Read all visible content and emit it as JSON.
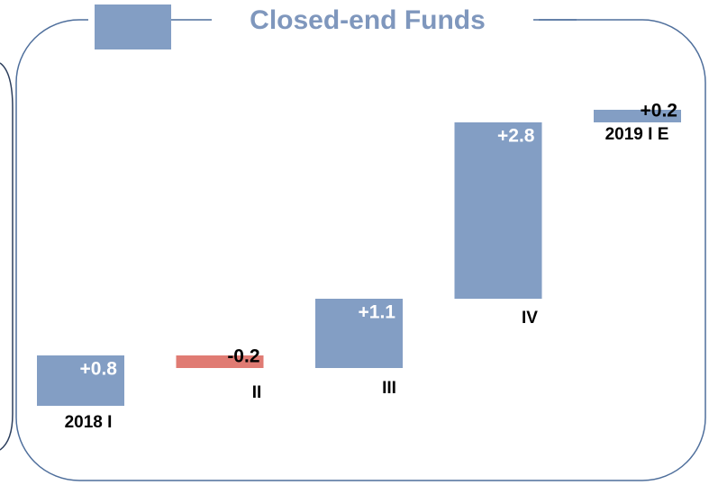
{
  "chart_data": {
    "type": "waterfall",
    "title": "Closed-end Funds",
    "categories": [
      "2018 I",
      "II",
      "III",
      "IV",
      "2019 I E"
    ],
    "values": [
      0.8,
      -0.2,
      1.1,
      2.8,
      0.2
    ],
    "value_labels": [
      "+0.8",
      "-0.2",
      "+1.1",
      "+2.8",
      "+0.2"
    ],
    "colors": {
      "increase": "#839ec4",
      "decrease": "#e07b73"
    }
  }
}
